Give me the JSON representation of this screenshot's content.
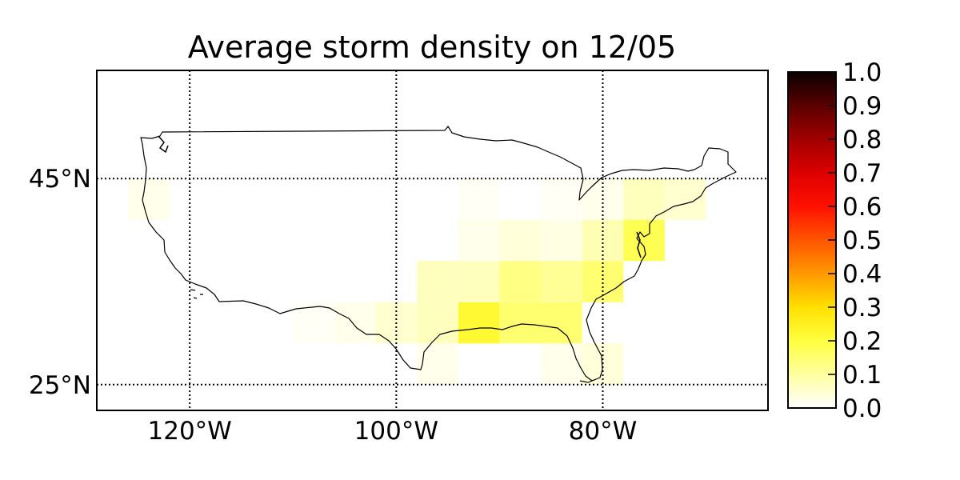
{
  "map": {
    "title": "Average storm density on 12/05",
    "lon_range": [
      -129,
      -64
    ],
    "lat_range": [
      22.5,
      55.5
    ],
    "longitude_ticks": [
      {
        "value": -120,
        "label": "120°W"
      },
      {
        "value": -100,
        "label": "100°W"
      },
      {
        "value": -80,
        "label": "80°W"
      }
    ],
    "latitude_ticks": [
      {
        "value": 45,
        "label": "45°N"
      },
      {
        "value": 25,
        "label": "25°N"
      }
    ],
    "graticule_style": "dotted",
    "colormap": "hot_r",
    "colorbar": {
      "range": [
        0.0,
        1.0
      ],
      "ticks": [
        "0.0",
        "0.1",
        "0.2",
        "0.3",
        "0.4",
        "0.5",
        "0.6",
        "0.7",
        "0.8",
        "0.9",
        "1.0"
      ]
    },
    "grid_cell_size_deg": 4,
    "density_cells": [
      {
        "lon": -92,
        "lat": 31,
        "value": 0.22
      },
      {
        "lon": -88,
        "lat": 31,
        "value": 0.15
      },
      {
        "lon": -84,
        "lat": 31,
        "value": 0.15
      },
      {
        "lon": -96,
        "lat": 31,
        "value": 0.07
      },
      {
        "lon": -100,
        "lat": 31,
        "value": 0.05
      },
      {
        "lon": -104,
        "lat": 31,
        "value": 0.02
      },
      {
        "lon": -108,
        "lat": 31,
        "value": 0.01
      },
      {
        "lon": -96,
        "lat": 35,
        "value": 0.07
      },
      {
        "lon": -92,
        "lat": 35,
        "value": 0.07
      },
      {
        "lon": -88,
        "lat": 35,
        "value": 0.13
      },
      {
        "lon": -84,
        "lat": 35,
        "value": 0.11
      },
      {
        "lon": -80,
        "lat": 35,
        "value": 0.15
      },
      {
        "lon": -88,
        "lat": 39,
        "value": 0.04
      },
      {
        "lon": -84,
        "lat": 39,
        "value": 0.03
      },
      {
        "lon": -80,
        "lat": 39,
        "value": 0.08
      },
      {
        "lon": -76,
        "lat": 39,
        "value": 0.18
      },
      {
        "lon": -84,
        "lat": 43,
        "value": 0.01
      },
      {
        "lon": -80,
        "lat": 43,
        "value": 0.02
      },
      {
        "lon": -76,
        "lat": 43,
        "value": 0.07
      },
      {
        "lon": -72,
        "lat": 43,
        "value": 0.05
      },
      {
        "lon": -92,
        "lat": 43,
        "value": 0.01
      },
      {
        "lon": -92,
        "lat": 39,
        "value": 0.02
      },
      {
        "lon": -124,
        "lat": 43,
        "value": 0.02
      },
      {
        "lon": -80,
        "lat": 27,
        "value": 0.04
      },
      {
        "lon": -84,
        "lat": 27,
        "value": 0.02
      },
      {
        "lon": -96,
        "lat": 27,
        "value": 0.02
      }
    ]
  }
}
